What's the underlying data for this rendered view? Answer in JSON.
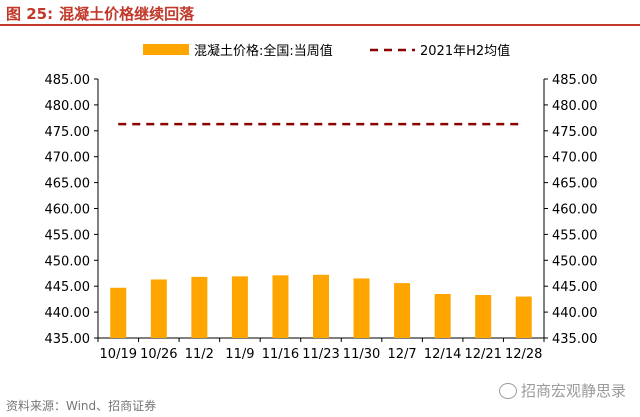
{
  "figure": {
    "number": "图 25:",
    "title": "混凝土价格继续回落"
  },
  "source": "资料来源：Wind、招商证券",
  "watermark": "招商宏观静思录",
  "colors": {
    "bar": "#FFA500",
    "reference_line": "#8B0000",
    "axis": "#000000",
    "title": "#c0392b"
  },
  "chart_data": {
    "type": "bar",
    "categories": [
      "10/19",
      "10/26",
      "11/2",
      "11/9",
      "11/16",
      "11/23",
      "11/30",
      "12/7",
      "12/14",
      "12/21",
      "12/28"
    ],
    "series": [
      {
        "name": "混凝土价格:全国:当周值",
        "type": "bar",
        "values": [
          444.7,
          446.3,
          446.8,
          446.9,
          447.1,
          447.2,
          446.5,
          445.6,
          443.5,
          443.3,
          443.0
        ]
      },
      {
        "name": "2021年H2均值",
        "type": "line",
        "style": "dashed",
        "values": [
          476.3,
          476.3,
          476.3,
          476.3,
          476.3,
          476.3,
          476.3,
          476.3,
          476.3,
          476.3,
          476.3
        ]
      }
    ],
    "ylim": [
      435,
      485
    ],
    "yticks": [
      "435.00",
      "440.00",
      "445.00",
      "450.00",
      "455.00",
      "460.00",
      "465.00",
      "470.00",
      "475.00",
      "480.00",
      "485.00"
    ],
    "y_right_mirror": true,
    "grid": false,
    "legend": "top"
  }
}
